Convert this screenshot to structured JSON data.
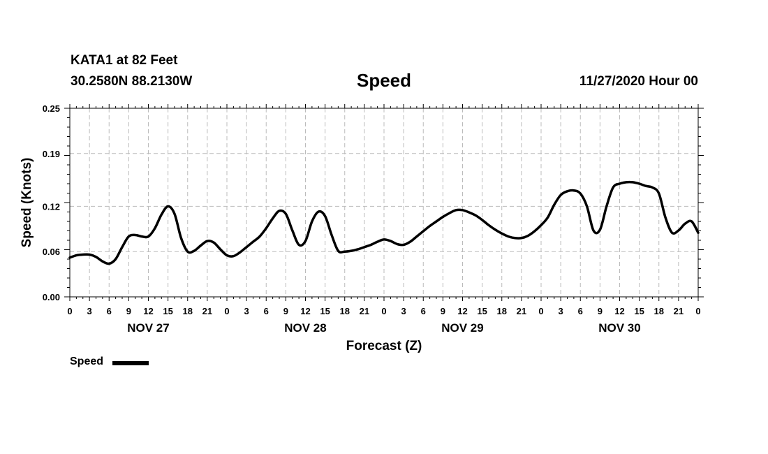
{
  "header": {
    "station": "KATA1 at 82 Feet",
    "coordinates": "30.2580N 88.2130W",
    "title": "Speed",
    "datetime": "11/27/2020 Hour 00"
  },
  "legend": {
    "label": "Speed"
  },
  "chart_data": {
    "type": "line",
    "title": "Speed",
    "xlabel": "Forecast (Z)",
    "ylabel": "Speed (Knots)",
    "ylim": [
      0,
      0.25
    ],
    "yticks": [
      "0.00",
      "0.06",
      "0.12",
      "0.19",
      "0.25"
    ],
    "xlim": [
      0,
      96
    ],
    "xtick_labels": [
      "0",
      "3",
      "6",
      "9",
      "12",
      "15",
      "18",
      "21",
      "0",
      "3",
      "6",
      "9",
      "12",
      "15",
      "18",
      "21",
      "0",
      "3",
      "6",
      "9",
      "12",
      "15",
      "18",
      "21",
      "0",
      "3",
      "6",
      "9",
      "12",
      "15",
      "18",
      "21",
      "0"
    ],
    "day_labels": [
      {
        "label": "NOV 27",
        "hour": 12
      },
      {
        "label": "NOV 28",
        "hour": 36
      },
      {
        "label": "NOV 29",
        "hour": 60
      },
      {
        "label": "NOV 30",
        "hour": 84
      }
    ],
    "grid": true,
    "series": [
      {
        "name": "Speed",
        "color": "#000000",
        "x": [
          0,
          1,
          2,
          3,
          4,
          5,
          6,
          7,
          8,
          9,
          10,
          11,
          12,
          13,
          14,
          15,
          16,
          17,
          18,
          19,
          20,
          21,
          22,
          23,
          24,
          25,
          26,
          27,
          28,
          29,
          30,
          31,
          32,
          33,
          34,
          35,
          36,
          37,
          38,
          39,
          40,
          41,
          42,
          43,
          44,
          45,
          46,
          47,
          48,
          49,
          50,
          51,
          52,
          53,
          54,
          55,
          56,
          57,
          58,
          59,
          60,
          61,
          62,
          63,
          64,
          65,
          66,
          67,
          68,
          69,
          70,
          71,
          72,
          73,
          74,
          75,
          76,
          77,
          78,
          79,
          80,
          81,
          82,
          83,
          84,
          85,
          86,
          87,
          88,
          89,
          90,
          91,
          92,
          93,
          94,
          95,
          96
        ],
        "values": [
          0.052,
          0.055,
          0.056,
          0.056,
          0.053,
          0.047,
          0.044,
          0.05,
          0.066,
          0.08,
          0.082,
          0.08,
          0.08,
          0.091,
          0.109,
          0.12,
          0.11,
          0.078,
          0.06,
          0.061,
          0.068,
          0.074,
          0.072,
          0.063,
          0.055,
          0.054,
          0.059,
          0.066,
          0.073,
          0.08,
          0.091,
          0.104,
          0.114,
          0.11,
          0.088,
          0.069,
          0.074,
          0.1,
          0.113,
          0.107,
          0.082,
          0.061,
          0.06,
          0.061,
          0.063,
          0.066,
          0.069,
          0.073,
          0.076,
          0.074,
          0.07,
          0.069,
          0.073,
          0.08,
          0.087,
          0.094,
          0.1,
          0.106,
          0.111,
          0.115,
          0.115,
          0.112,
          0.108,
          0.102,
          0.095,
          0.089,
          0.084,
          0.08,
          0.078,
          0.078,
          0.081,
          0.087,
          0.095,
          0.105,
          0.122,
          0.135,
          0.14,
          0.141,
          0.137,
          0.12,
          0.088,
          0.089,
          0.12,
          0.145,
          0.15,
          0.152,
          0.152,
          0.15,
          0.147,
          0.145,
          0.137,
          0.105,
          0.085,
          0.088,
          0.097,
          0.1,
          0.085
        ]
      }
    ]
  }
}
